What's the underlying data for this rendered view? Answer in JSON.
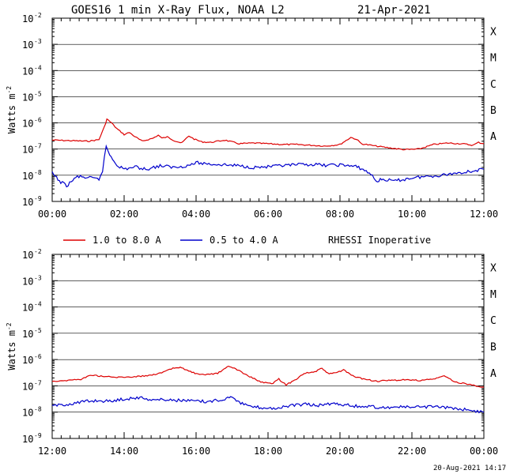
{
  "title": "GOES16 1 min X-Ray Flux, NOAA L2",
  "date": "21-Apr-2021",
  "footer": "20-Aug-2021 14:17",
  "legend": {
    "rhessi_note": "RHESSI Inoperative"
  },
  "colors": {
    "red": "#dd0000",
    "blue": "#0000cc",
    "axis": "#000000",
    "grid": "#000000"
  },
  "chart_data": [
    {
      "type": "line",
      "ylabel": "Watts m",
      "ylabel_exp": "-2",
      "yscale": "log",
      "ylim": [
        1e-09,
        0.01
      ],
      "y_ticks": [
        {
          "base": "10",
          "exp": "-2"
        },
        {
          "base": "10",
          "exp": "-3"
        },
        {
          "base": "10",
          "exp": "-4"
        },
        {
          "base": "10",
          "exp": "-5"
        },
        {
          "base": "10",
          "exp": "-6"
        },
        {
          "base": "10",
          "exp": "-7"
        },
        {
          "base": "10",
          "exp": "-8"
        },
        {
          "base": "10",
          "exp": "-9"
        }
      ],
      "xlim_hours": [
        0,
        12
      ],
      "x_tick_labels": [
        "00:00",
        "02:00",
        "04:00",
        "06:00",
        "08:00",
        "10:00",
        "12:00"
      ],
      "flare_classes": [
        "X",
        "M",
        "C",
        "B",
        "A"
      ],
      "grid": "horizontal at each decade",
      "series": [
        {
          "name": "1.0 to 8.0 A",
          "x": [
            0,
            0.5,
            1.0,
            1.3,
            1.45,
            1.52,
            1.65,
            1.8,
            2.0,
            2.15,
            2.3,
            2.5,
            2.8,
            2.95,
            3.05,
            3.2,
            3.4,
            3.6,
            3.8,
            3.95,
            4.15,
            4.4,
            4.8,
            5.2,
            5.6,
            6.0,
            6.4,
            6.8,
            7.2,
            7.6,
            8.0,
            8.3,
            8.45,
            8.6,
            9.0,
            9.4,
            9.8,
            10.2,
            10.6,
            11.0,
            11.4,
            11.7,
            11.85,
            12.0
          ],
          "y": [
            2.2e-07,
            2.1e-07,
            2e-07,
            2.3e-07,
            7e-07,
            1.4e-06,
            1e-06,
            6e-07,
            3.6e-07,
            4.3e-07,
            3e-07,
            2e-07,
            2.6e-07,
            3.4e-07,
            2.6e-07,
            2.9e-07,
            2.1e-07,
            1.7e-07,
            3.2e-07,
            2.4e-07,
            1.9e-07,
            1.8e-07,
            2.2e-07,
            1.6e-07,
            1.7e-07,
            1.6e-07,
            1.5e-07,
            1.5e-07,
            1.4e-07,
            1.3e-07,
            1.5e-07,
            2.8e-07,
            2.4e-07,
            1.6e-07,
            1.3e-07,
            1.1e-07,
            9.5e-08,
            1e-07,
            1.5e-07,
            1.7e-07,
            1.6e-07,
            1.4e-07,
            1.8e-07,
            1.6e-07
          ]
        },
        {
          "name": "0.5 to 4.0 A",
          "x": [
            0,
            0.2,
            0.4,
            0.7,
            1.0,
            1.3,
            1.4,
            1.5,
            1.6,
            1.8,
            2.0,
            2.3,
            2.6,
            3.0,
            3.4,
            3.8,
            4.0,
            4.4,
            4.8,
            5.2,
            5.6,
            6.0,
            6.4,
            6.8,
            7.2,
            7.6,
            8.0,
            8.4,
            8.6,
            8.9,
            9.0,
            9.2,
            9.5,
            9.8,
            10.0,
            10.4,
            10.8,
            11.2,
            11.6,
            12.0
          ],
          "y": [
            1.2e-08,
            6e-09,
            4e-09,
            9e-09,
            8e-09,
            7e-09,
            1.5e-08,
            1.3e-07,
            6e-08,
            2.5e-08,
            1.7e-08,
            2.1e-08,
            1.7e-08,
            2.3e-08,
            2e-08,
            2.4e-08,
            3e-08,
            2.7e-08,
            2.5e-08,
            2.3e-08,
            2e-08,
            2.1e-08,
            2.3e-08,
            2.5e-08,
            2.6e-08,
            2.4e-08,
            2.5e-08,
            2.2e-08,
            1.8e-08,
            1e-08,
            6e-09,
            7e-09,
            6e-09,
            7e-09,
            8e-09,
            9e-09,
            1e-08,
            1.2e-08,
            1.4e-08,
            1.7e-08
          ]
        }
      ]
    },
    {
      "type": "line",
      "ylabel": "Watts m",
      "ylabel_exp": "-2",
      "yscale": "log",
      "ylim": [
        1e-09,
        0.01
      ],
      "y_ticks": [
        {
          "base": "10",
          "exp": "-2"
        },
        {
          "base": "10",
          "exp": "-3"
        },
        {
          "base": "10",
          "exp": "-4"
        },
        {
          "base": "10",
          "exp": "-5"
        },
        {
          "base": "10",
          "exp": "-6"
        },
        {
          "base": "10",
          "exp": "-7"
        },
        {
          "base": "10",
          "exp": "-8"
        },
        {
          "base": "10",
          "exp": "-9"
        }
      ],
      "xlim_hours": [
        12,
        24
      ],
      "x_tick_labels": [
        "12:00",
        "14:00",
        "16:00",
        "18:00",
        "20:00",
        "22:00",
        "00:00"
      ],
      "flare_classes": [
        "X",
        "M",
        "C",
        "B",
        "A"
      ],
      "grid": "horizontal at each decade",
      "series": [
        {
          "name": "1.0 to 8.0 A",
          "x": [
            12,
            12.4,
            12.8,
            13.1,
            13.4,
            13.8,
            14.2,
            14.6,
            15.0,
            15.4,
            15.6,
            15.8,
            16.1,
            16.3,
            16.6,
            16.9,
            17.1,
            17.4,
            17.8,
            18.1,
            18.3,
            18.5,
            18.7,
            19.0,
            19.3,
            19.5,
            19.7,
            19.9,
            20.1,
            20.4,
            20.7,
            21.0,
            21.4,
            21.8,
            22.2,
            22.6,
            22.9,
            23.2,
            23.5,
            23.8,
            24.0
          ],
          "y": [
            1.5e-07,
            1.6e-07,
            1.8e-07,
            2.6e-07,
            2.3e-07,
            2.1e-07,
            2.2e-07,
            2.4e-07,
            3e-07,
            4.8e-07,
            5e-07,
            3.6e-07,
            2.6e-07,
            2.7e-07,
            3e-07,
            5.5e-07,
            4.5e-07,
            2.6e-07,
            1.4e-07,
            1.2e-07,
            1.8e-07,
            1.1e-07,
            1.5e-07,
            3e-07,
            3.4e-07,
            4.6e-07,
            2.8e-07,
            3.2e-07,
            4e-07,
            2.2e-07,
            1.8e-07,
            1.5e-07,
            1.6e-07,
            1.7e-07,
            1.6e-07,
            1.8e-07,
            2.4e-07,
            1.4e-07,
            1.2e-07,
            1e-07,
            9e-08
          ]
        },
        {
          "name": "0.5 to 4.0 A",
          "x": [
            12,
            12.4,
            12.8,
            13.2,
            13.6,
            14.0,
            14.4,
            14.8,
            15.2,
            15.6,
            16.0,
            16.4,
            16.8,
            17.0,
            17.2,
            17.5,
            17.8,
            18.2,
            18.6,
            19.0,
            19.4,
            19.8,
            20.0,
            20.4,
            20.8,
            21.2,
            21.6,
            22.0,
            22.4,
            22.8,
            23.2,
            23.6,
            24.0
          ],
          "y": [
            1.7e-08,
            2e-08,
            2.4e-08,
            2.8e-08,
            2.6e-08,
            3.2e-08,
            3.6e-08,
            3e-08,
            3e-08,
            2.8e-08,
            2.6e-08,
            2.5e-08,
            3.2e-08,
            4.2e-08,
            2.4e-08,
            1.6e-08,
            1.5e-08,
            1.4e-08,
            1.7e-08,
            2e-08,
            1.8e-08,
            2.2e-08,
            2e-08,
            1.7e-08,
            1.6e-08,
            1.5e-08,
            1.6e-08,
            1.5e-08,
            1.6e-08,
            1.5e-08,
            1.4e-08,
            1.2e-08,
            1e-08
          ]
        }
      ]
    }
  ]
}
